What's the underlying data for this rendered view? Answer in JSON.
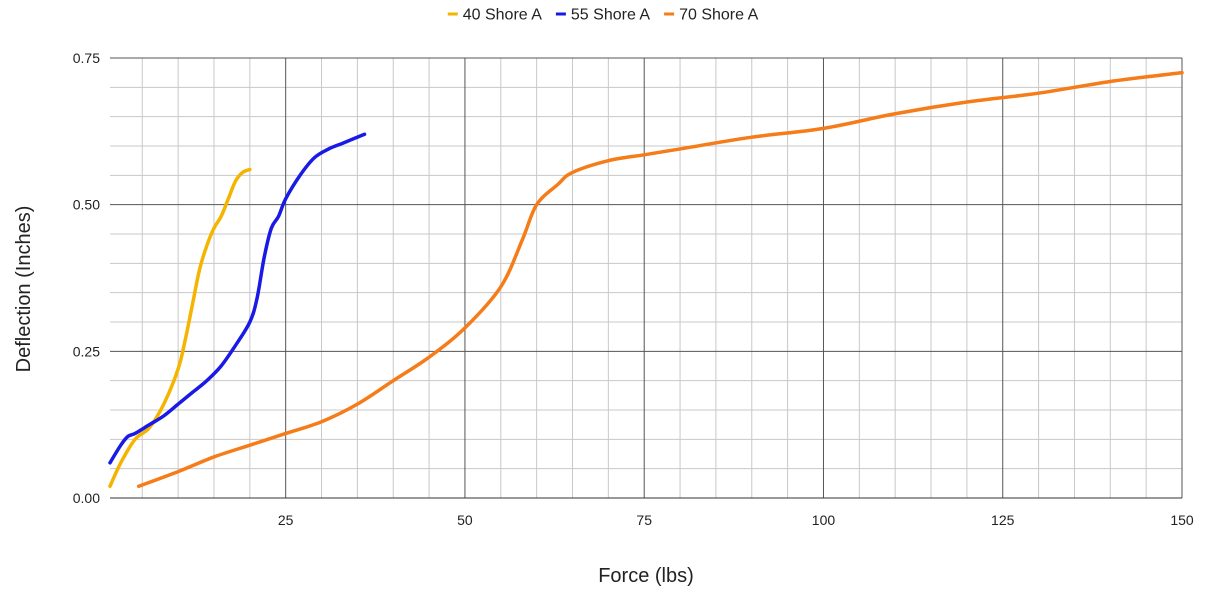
{
  "chart_data": {
    "type": "line",
    "title": "",
    "xlabel": "Force (lbs)",
    "ylabel": "Deflection (Inches)",
    "xlim": [
      0.5,
      150
    ],
    "ylim": [
      0,
      0.75
    ],
    "x_ticks": [
      25,
      50,
      75,
      100,
      125,
      150
    ],
    "x_tick_labels": [
      "25",
      "50",
      "75",
      "100",
      "125",
      "150"
    ],
    "y_ticks": [
      0,
      0.25,
      0.5,
      0.75
    ],
    "y_tick_labels": [
      "0.00",
      "0.25",
      "0.50",
      "0.75"
    ],
    "x_minor_step": 5,
    "y_minor_step": 0.05,
    "grid": true,
    "legend_position": "top-center",
    "series": [
      {
        "name": "40 Shore A",
        "color": "#f4b400",
        "points": [
          [
            0.5,
            0.02
          ],
          [
            2,
            0.06
          ],
          [
            4,
            0.1
          ],
          [
            6,
            0.12
          ],
          [
            8,
            0.16
          ],
          [
            10,
            0.22
          ],
          [
            11,
            0.27
          ],
          [
            12,
            0.33
          ],
          [
            13,
            0.39
          ],
          [
            14,
            0.43
          ],
          [
            15,
            0.46
          ],
          [
            16,
            0.48
          ],
          [
            17,
            0.51
          ],
          [
            18,
            0.54
          ],
          [
            19,
            0.555
          ],
          [
            20,
            0.56
          ]
        ]
      },
      {
        "name": "55 Shore A",
        "color": "#1a1ae6",
        "points": [
          [
            0.5,
            0.06
          ],
          [
            2,
            0.09
          ],
          [
            3,
            0.105
          ],
          [
            4,
            0.11
          ],
          [
            6,
            0.125
          ],
          [
            8,
            0.14
          ],
          [
            10,
            0.16
          ],
          [
            12,
            0.18
          ],
          [
            14,
            0.2
          ],
          [
            16,
            0.225
          ],
          [
            18,
            0.26
          ],
          [
            20,
            0.3
          ],
          [
            21,
            0.34
          ],
          [
            22,
            0.41
          ],
          [
            23,
            0.46
          ],
          [
            24,
            0.48
          ],
          [
            25,
            0.51
          ],
          [
            27,
            0.55
          ],
          [
            29,
            0.58
          ],
          [
            31,
            0.595
          ],
          [
            33,
            0.605
          ],
          [
            36,
            0.62
          ]
        ]
      },
      {
        "name": "70 Shore A",
        "color": "#f57c18",
        "points": [
          [
            4.5,
            0.02
          ],
          [
            10,
            0.045
          ],
          [
            15,
            0.07
          ],
          [
            20,
            0.09
          ],
          [
            25,
            0.11
          ],
          [
            30,
            0.13
          ],
          [
            35,
            0.16
          ],
          [
            40,
            0.2
          ],
          [
            45,
            0.24
          ],
          [
            50,
            0.29
          ],
          [
            55,
            0.36
          ],
          [
            58,
            0.44
          ],
          [
            60,
            0.5
          ],
          [
            63,
            0.535
          ],
          [
            65,
            0.555
          ],
          [
            70,
            0.575
          ],
          [
            75,
            0.585
          ],
          [
            80,
            0.595
          ],
          [
            90,
            0.615
          ],
          [
            100,
            0.63
          ],
          [
            110,
            0.655
          ],
          [
            120,
            0.675
          ],
          [
            130,
            0.69
          ],
          [
            140,
            0.71
          ],
          [
            150,
            0.725
          ]
        ]
      }
    ]
  }
}
